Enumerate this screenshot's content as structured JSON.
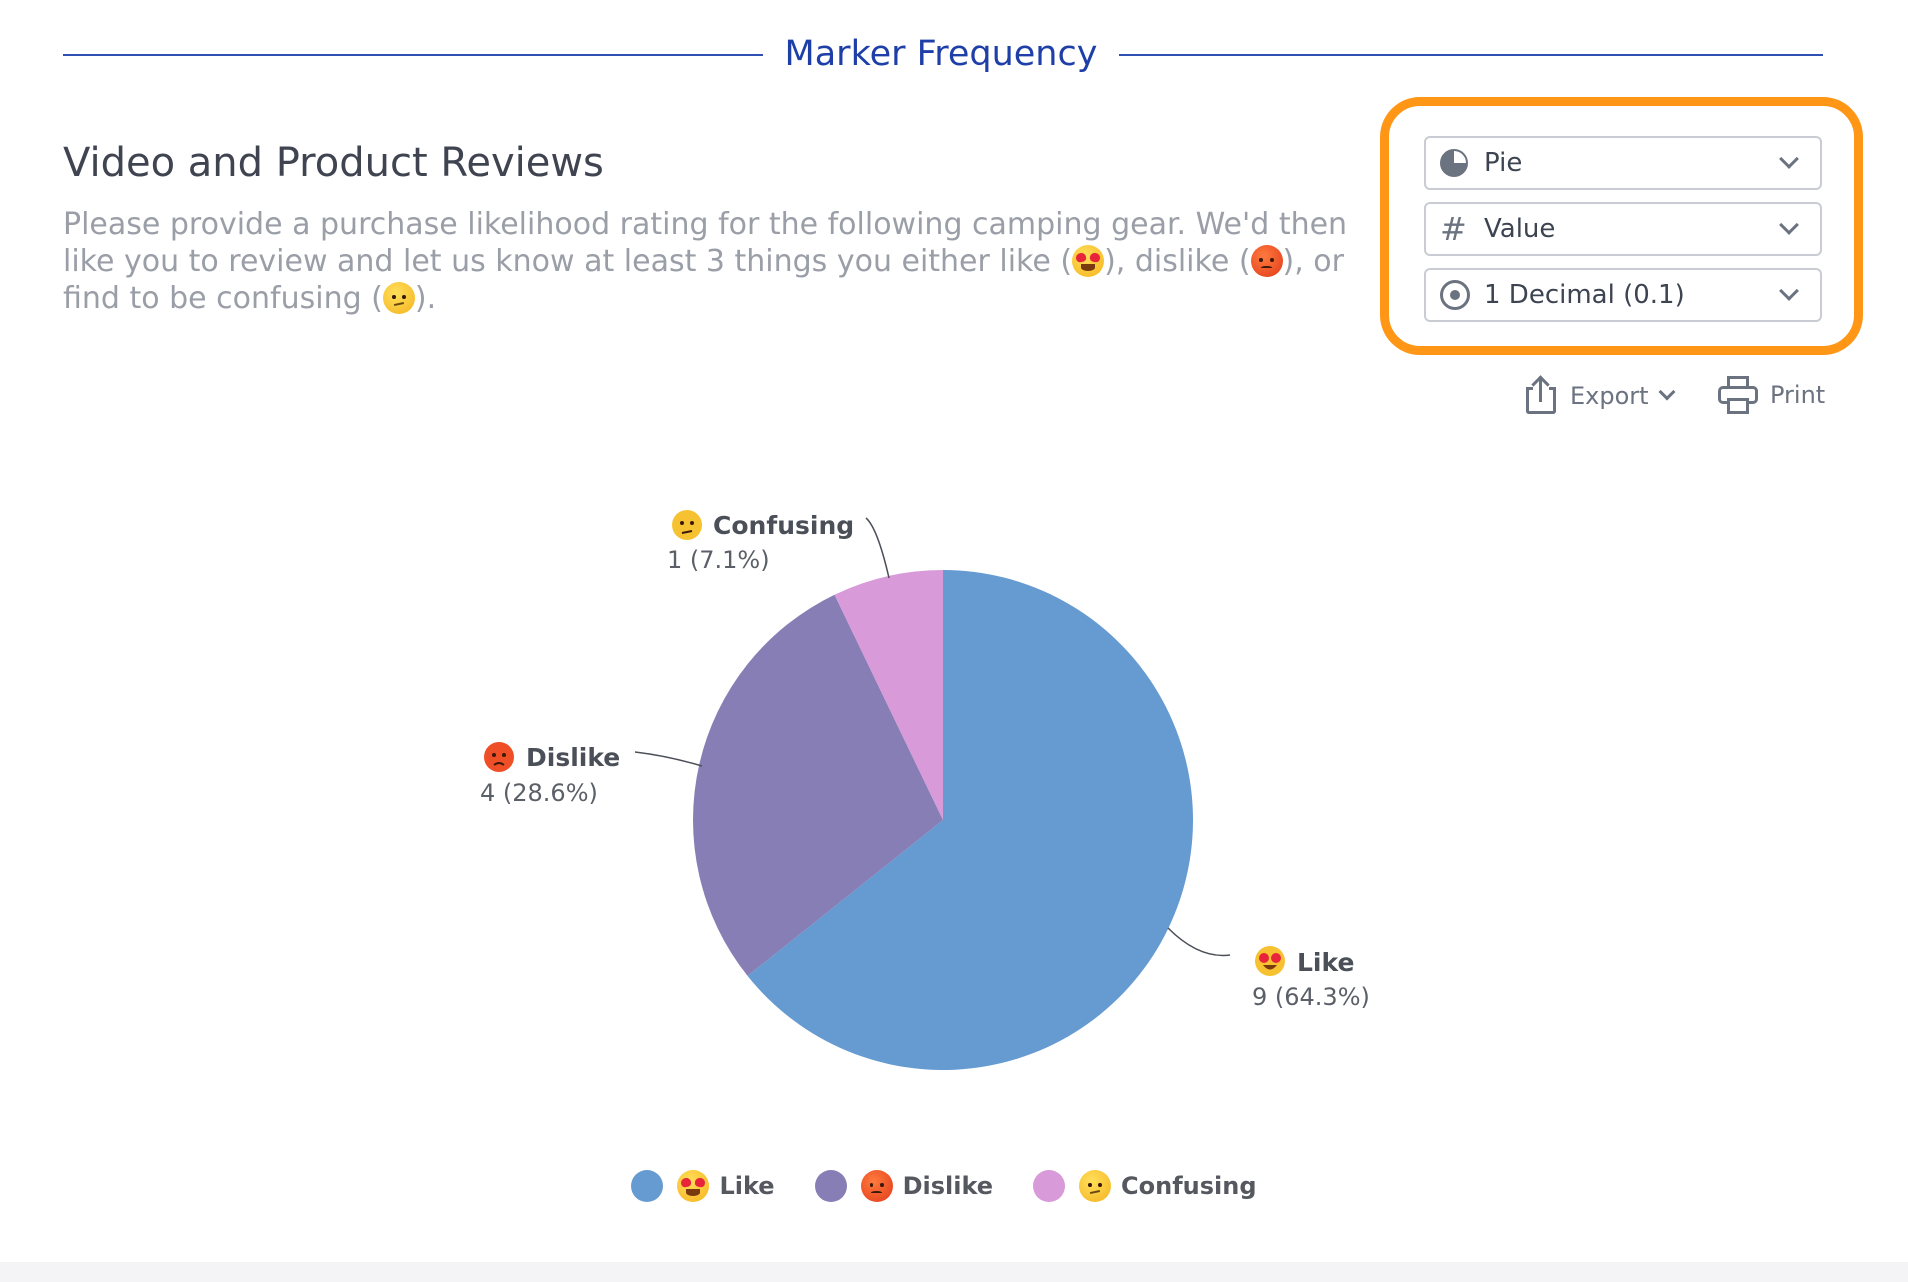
{
  "section": {
    "title": "Marker Frequency"
  },
  "question": {
    "title": "Video and Product Reviews",
    "desc_part1": "Please provide a purchase likelihood rating for the following camping gear. We'd then like you to review and let us know at least 3 things you either like (",
    "desc_part2": "), dislike (",
    "desc_part3": "), or find to be confusing (",
    "desc_part4": ")."
  },
  "controls": {
    "chart_type": {
      "label": "Pie",
      "icon": "pie-icon"
    },
    "value_mode": {
      "label": "Value",
      "icon": "hash-icon"
    },
    "precision": {
      "label": "1 Decimal (0.1)",
      "icon": "radio-icon"
    }
  },
  "actions": {
    "export_label": "Export",
    "print_label": "Print"
  },
  "colors": {
    "like": "#659bd1",
    "dislike": "#877eb5",
    "confusing": "#d89ad9",
    "highlight": "#ff9616",
    "header": "#1f3fa8"
  },
  "chart_data": {
    "type": "pie",
    "categories": [
      "Like",
      "Dislike",
      "Confusing"
    ],
    "values": [
      9,
      4,
      1
    ],
    "percentages": [
      64.3,
      28.6,
      7.1
    ],
    "value_labels": [
      "9 (64.3%)",
      "4 (28.6%)",
      "1 (7.1%)"
    ],
    "emoji": [
      "love-eyes",
      "angry",
      "confused"
    ],
    "legend_position": "bottom"
  }
}
